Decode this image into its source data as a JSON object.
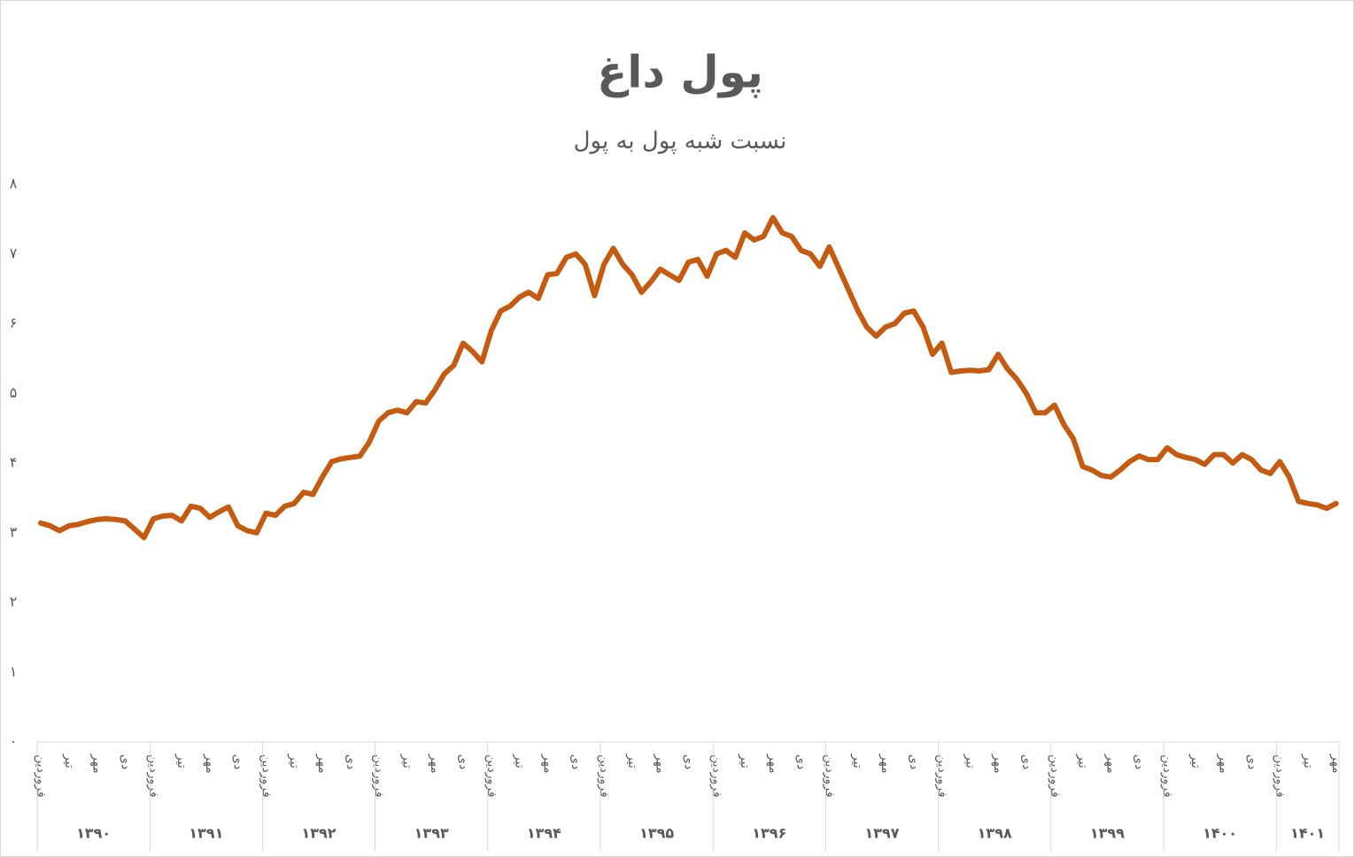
{
  "chart_data": {
    "type": "line",
    "title": "پول داغ",
    "subtitle": "نسبت شبه پول به پول",
    "categories": [
      "فروردین",
      null,
      null,
      "تیر",
      null,
      null,
      "مهر",
      null,
      null,
      "دی",
      null,
      null,
      "فروردین",
      null,
      null,
      "تیر",
      null,
      null,
      "مهر",
      null,
      null,
      "دی",
      null,
      null,
      "فروردین",
      null,
      null,
      "تیر",
      null,
      null,
      "مهر",
      null,
      null,
      "دی",
      null,
      null,
      "فروردین",
      null,
      null,
      "تیر",
      null,
      null,
      "مهر",
      null,
      null,
      "دی",
      null,
      null,
      "فروردین",
      null,
      null,
      "تیر",
      null,
      null,
      "مهر",
      null,
      null,
      "دی",
      null,
      null,
      "فروردین",
      null,
      null,
      "تیر",
      null,
      null,
      "مهر",
      null,
      null,
      "دی",
      null,
      null,
      "فروردین",
      null,
      null,
      "تیر",
      null,
      null,
      "مهر",
      null,
      null,
      "دی",
      null,
      null,
      "فروردین",
      null,
      null,
      "تیر",
      null,
      null,
      "مهر",
      null,
      null,
      "دی",
      null,
      null,
      "فروردین",
      null,
      null,
      "تیر",
      null,
      null,
      "مهر",
      null,
      null,
      "دی",
      null,
      null,
      "فروردین",
      null,
      null,
      "تیر",
      null,
      null,
      "مهر",
      null,
      null,
      "دی",
      null,
      null,
      "فروردین",
      null,
      null,
      "تیر",
      null,
      null,
      "مهر",
      null,
      null,
      "دی",
      null,
      null,
      "فروردین",
      null,
      null,
      "تیر",
      null,
      null,
      "مهر"
    ],
    "year_groups": [
      "۱۳۹۰",
      "۱۳۹۱",
      "۱۳۹۲",
      "۱۳۹۳",
      "۱۳۹۴",
      "۱۳۹۵",
      "۱۳۹۶",
      "۱۳۹۷",
      "۱۳۹۸",
      "۱۳۹۹",
      "۱۴۰۰",
      "۱۴۰۱"
    ],
    "series": [
      {
        "name": "نسبت شبه پول به پول",
        "color": "#c55a11",
        "values": [
          3.14,
          3.1,
          3.03,
          3.1,
          3.12,
          3.16,
          3.19,
          3.2,
          3.19,
          3.17,
          3.05,
          2.93,
          3.2,
          3.24,
          3.25,
          3.17,
          3.38,
          3.35,
          3.22,
          3.3,
          3.37,
          3.1,
          3.03,
          3.0,
          3.28,
          3.25,
          3.38,
          3.42,
          3.58,
          3.55,
          3.8,
          4.02,
          4.06,
          4.08,
          4.1,
          4.3,
          4.6,
          4.72,
          4.76,
          4.72,
          4.88,
          4.86,
          5.05,
          5.28,
          5.4,
          5.72,
          5.6,
          5.45,
          5.9,
          6.18,
          6.25,
          6.38,
          6.45,
          6.36,
          6.7,
          6.72,
          6.95,
          7.0,
          6.85,
          6.4,
          6.85,
          7.08,
          6.85,
          6.7,
          6.45,
          6.6,
          6.78,
          6.7,
          6.62,
          6.88,
          6.92,
          6.68,
          7.0,
          7.05,
          6.95,
          7.3,
          7.2,
          7.25,
          7.52,
          7.3,
          7.25,
          7.05,
          7.0,
          6.82,
          7.1,
          6.8,
          6.5,
          6.2,
          5.95,
          5.82,
          5.95,
          6.0,
          6.15,
          6.18,
          5.95,
          5.56,
          5.72,
          5.3,
          5.32,
          5.33,
          5.32,
          5.34,
          5.56,
          5.35,
          5.2,
          5.0,
          4.72,
          4.72,
          4.83,
          4.55,
          4.35,
          3.95,
          3.9,
          3.82,
          3.8,
          3.9,
          4.02,
          4.1,
          4.05,
          4.05,
          4.22,
          4.12,
          4.08,
          4.05,
          3.98,
          4.12,
          4.12,
          4.0,
          4.12,
          4.05,
          3.9,
          3.85,
          4.02,
          3.8,
          3.45,
          3.42,
          3.4,
          3.35,
          3.42
        ]
      }
    ],
    "ylim": [
      0,
      8
    ],
    "yticks": [
      {
        "value": 0,
        "label": "۰"
      },
      {
        "value": 1,
        "label": "۱"
      },
      {
        "value": 2,
        "label": "۲"
      },
      {
        "value": 3,
        "label": "۳"
      },
      {
        "value": 4,
        "label": "۴"
      },
      {
        "value": 5,
        "label": "۵"
      },
      {
        "value": 6,
        "label": "۶"
      },
      {
        "value": 7,
        "label": "۷"
      },
      {
        "value": 8,
        "label": "۸"
      }
    ],
    "grid": false
  }
}
